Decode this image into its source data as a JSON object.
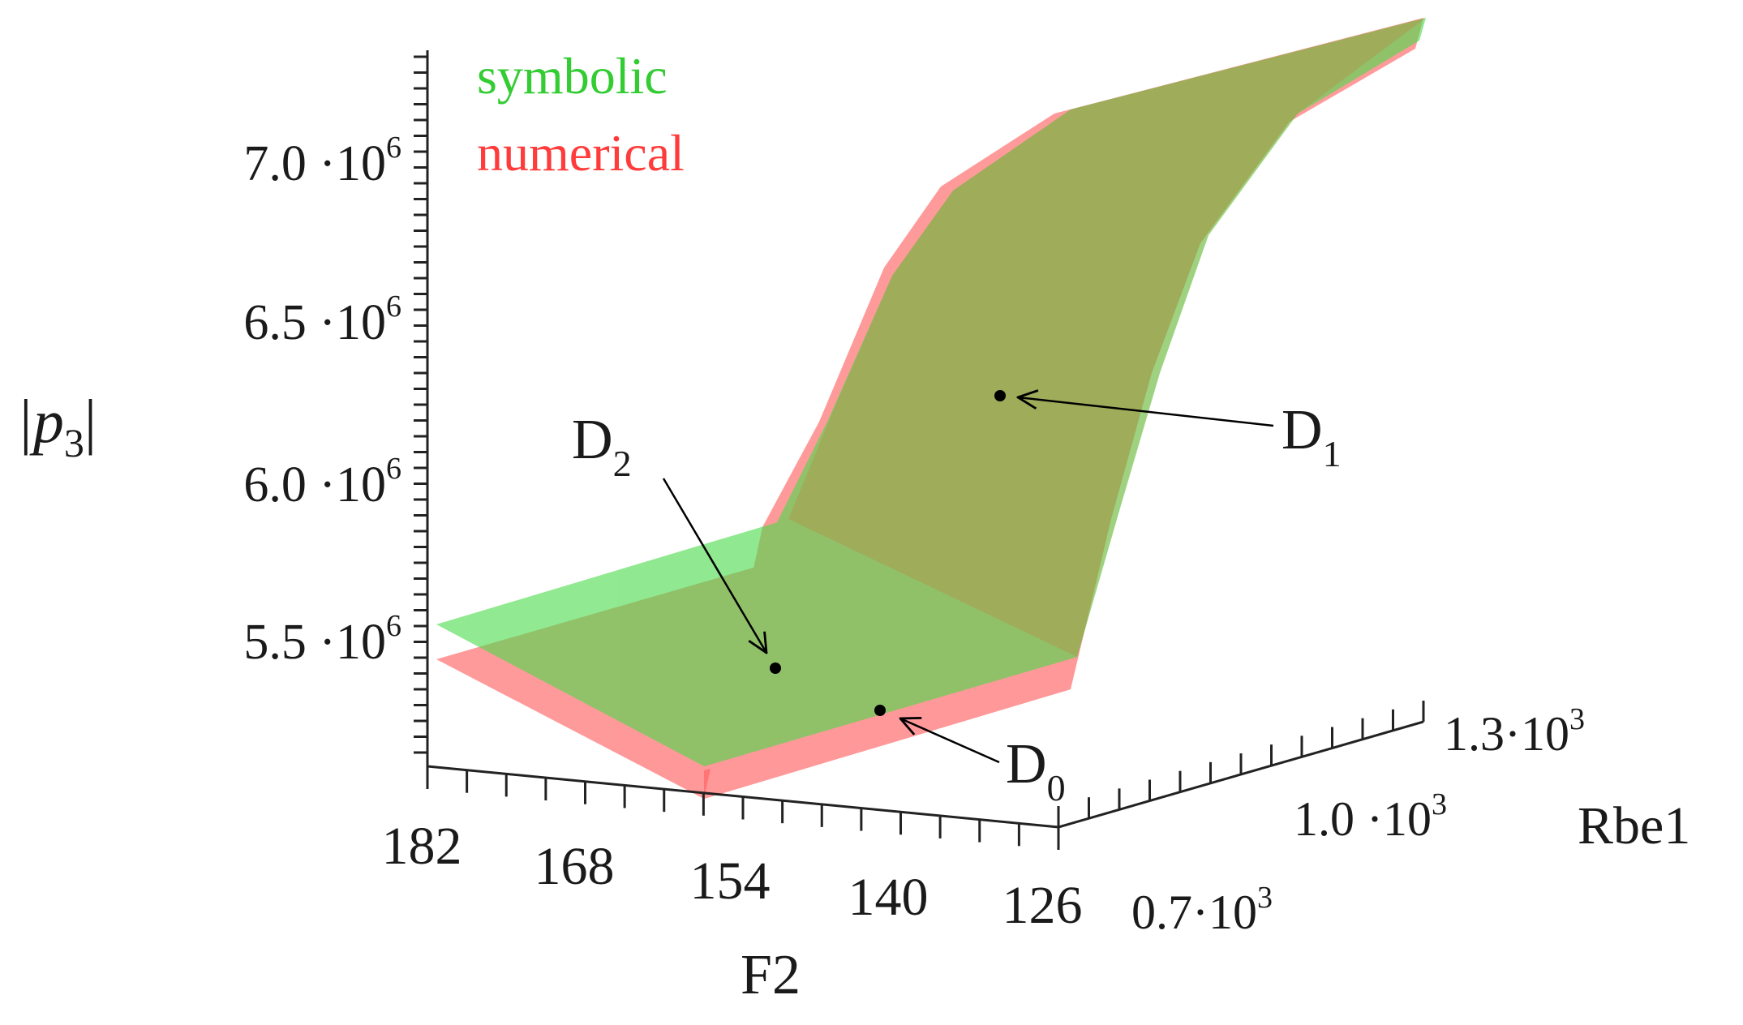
{
  "chart_data": {
    "type": "surface",
    "zlabel_main": "|p",
    "zlabel_sub": "3",
    "zlabel_tail": "|",
    "xlabel": "F2",
    "ylabel": "Rbe1",
    "x_ticks": [
      "182",
      "168",
      "154",
      "140",
      "126"
    ],
    "y_ticks": [
      {
        "mant": "0.7",
        "exp": "3"
      },
      {
        "mant": "1.0",
        "exp": "3"
      },
      {
        "mant": "1.3",
        "exp": "3"
      }
    ],
    "z_ticks": [
      {
        "mant": "5.5",
        "exp": "6"
      },
      {
        "mant": "6.0",
        "exp": "6"
      },
      {
        "mant": "6.5",
        "exp": "6"
      },
      {
        "mant": "7.0",
        "exp": "6"
      }
    ],
    "series": [
      {
        "name": "symbolic",
        "color": "#33cc33"
      },
      {
        "name": "numerical",
        "color": "#ff4d4d"
      }
    ],
    "annotations": [
      {
        "main": "D",
        "sub": "0"
      },
      {
        "main": "D",
        "sub": "1"
      },
      {
        "main": "D",
        "sub": "2"
      }
    ]
  }
}
